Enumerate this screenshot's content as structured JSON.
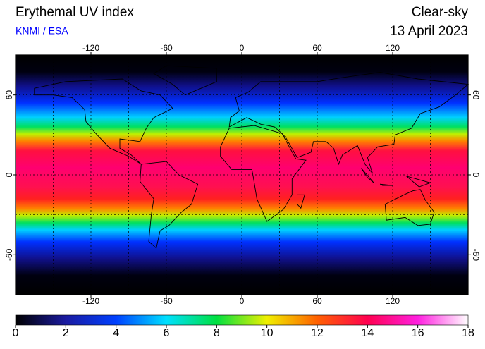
{
  "title": "Erythemal UV index",
  "source": "KNMI / ESA",
  "sky": "Clear-sky",
  "date": "13 April 2023",
  "map": {
    "lonlim": [
      -180,
      180
    ],
    "latlim": [
      -90,
      90
    ],
    "lon_ticks": [
      -120,
      -60,
      0,
      60,
      120
    ],
    "lat_ticks": [
      60,
      0,
      -60
    ],
    "lon_grid": [
      -150,
      -120,
      -90,
      -60,
      -30,
      0,
      30,
      60,
      90,
      120,
      150
    ],
    "lat_grid": [
      -60,
      -30,
      0,
      30,
      60
    ]
  },
  "colorbar": {
    "lim": [
      0,
      18
    ],
    "ticks": [
      0,
      2,
      4,
      6,
      8,
      10,
      12,
      14,
      16,
      18
    ],
    "colors": [
      "#000000",
      "#1a1aa0",
      "#0040ff",
      "#00e0ff",
      "#00e040",
      "#f0f000",
      "#ff6000",
      "#ff0050",
      "#ff20e0",
      "#ffffff"
    ]
  }
}
